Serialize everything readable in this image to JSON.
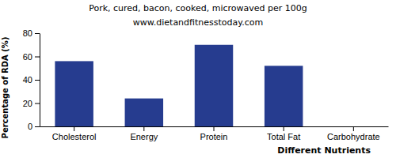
{
  "chart_data": {
    "type": "bar",
    "title": "Pork, cured, bacon, cooked, microwaved per 100g",
    "subtitle": "www.dietandfitnesstoday.com",
    "x_label": "Different Nutrients",
    "y_label": "Percentage of RDA (%)",
    "categories": [
      "Cholesterol",
      "Energy",
      "Protein",
      "Total Fat",
      "Carbohydrate"
    ],
    "values": [
      56,
      24,
      70,
      52,
      0
    ],
    "color": "#263c8f",
    "ylim": [
      0,
      80
    ],
    "yticks": [
      0,
      20,
      40,
      60,
      80
    ],
    "grid": false
  }
}
